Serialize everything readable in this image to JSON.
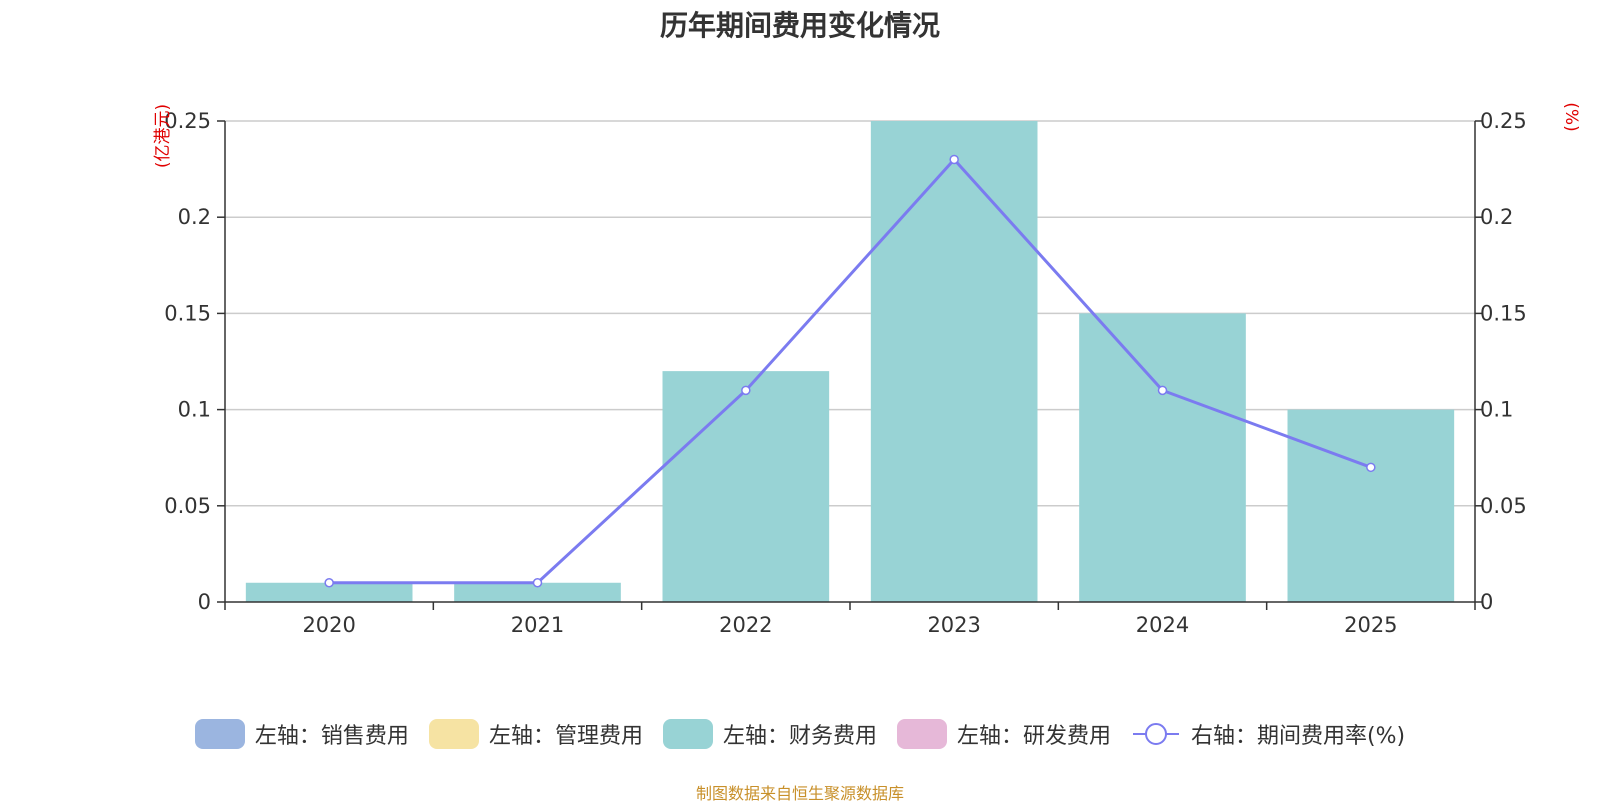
{
  "chart_data": {
    "type": "bar",
    "title": "历年期间费用变化情况",
    "categories": [
      "2020",
      "2021",
      "2022",
      "2023",
      "2024",
      "2025"
    ],
    "left_axis": {
      "unit": "(亿港元)",
      "ylim": [
        0,
        0.25
      ],
      "ticks": [
        "0",
        "0.05",
        "0.1",
        "0.15",
        "0.2",
        "0.25"
      ]
    },
    "right_axis": {
      "unit": "(%)",
      "ylim": [
        0,
        0.25
      ],
      "ticks": [
        "0",
        "0.05",
        "0.1",
        "0.15",
        "0.2",
        "0.25"
      ]
    },
    "series": [
      {
        "name": "左轴：销售费用",
        "type": "bar",
        "axis": "left",
        "color": "#9bb5e0",
        "values": [
          0,
          0,
          0,
          0,
          0,
          0
        ]
      },
      {
        "name": "左轴：管理费用",
        "type": "bar",
        "axis": "left",
        "color": "#f6e3a3",
        "values": [
          0,
          0,
          0,
          0,
          0,
          0
        ]
      },
      {
        "name": "左轴：财务费用",
        "type": "bar",
        "axis": "left",
        "color": "#98d3d5",
        "values": [
          0.01,
          0.01,
          0.12,
          0.25,
          0.15,
          0.1
        ]
      },
      {
        "name": "左轴：研发费用",
        "type": "bar",
        "axis": "left",
        "color": "#e6b8d8",
        "values": [
          0,
          0,
          0,
          0,
          0,
          0
        ]
      },
      {
        "name": "右轴：期间费用率(%)",
        "type": "line",
        "axis": "right",
        "color": "#7b7bf0",
        "values": [
          0.01,
          0.01,
          0.11,
          0.23,
          0.11,
          0.07
        ]
      }
    ],
    "grid": true,
    "legend_position": "bottom"
  },
  "source_note": "制图数据来自恒生聚源数据库"
}
